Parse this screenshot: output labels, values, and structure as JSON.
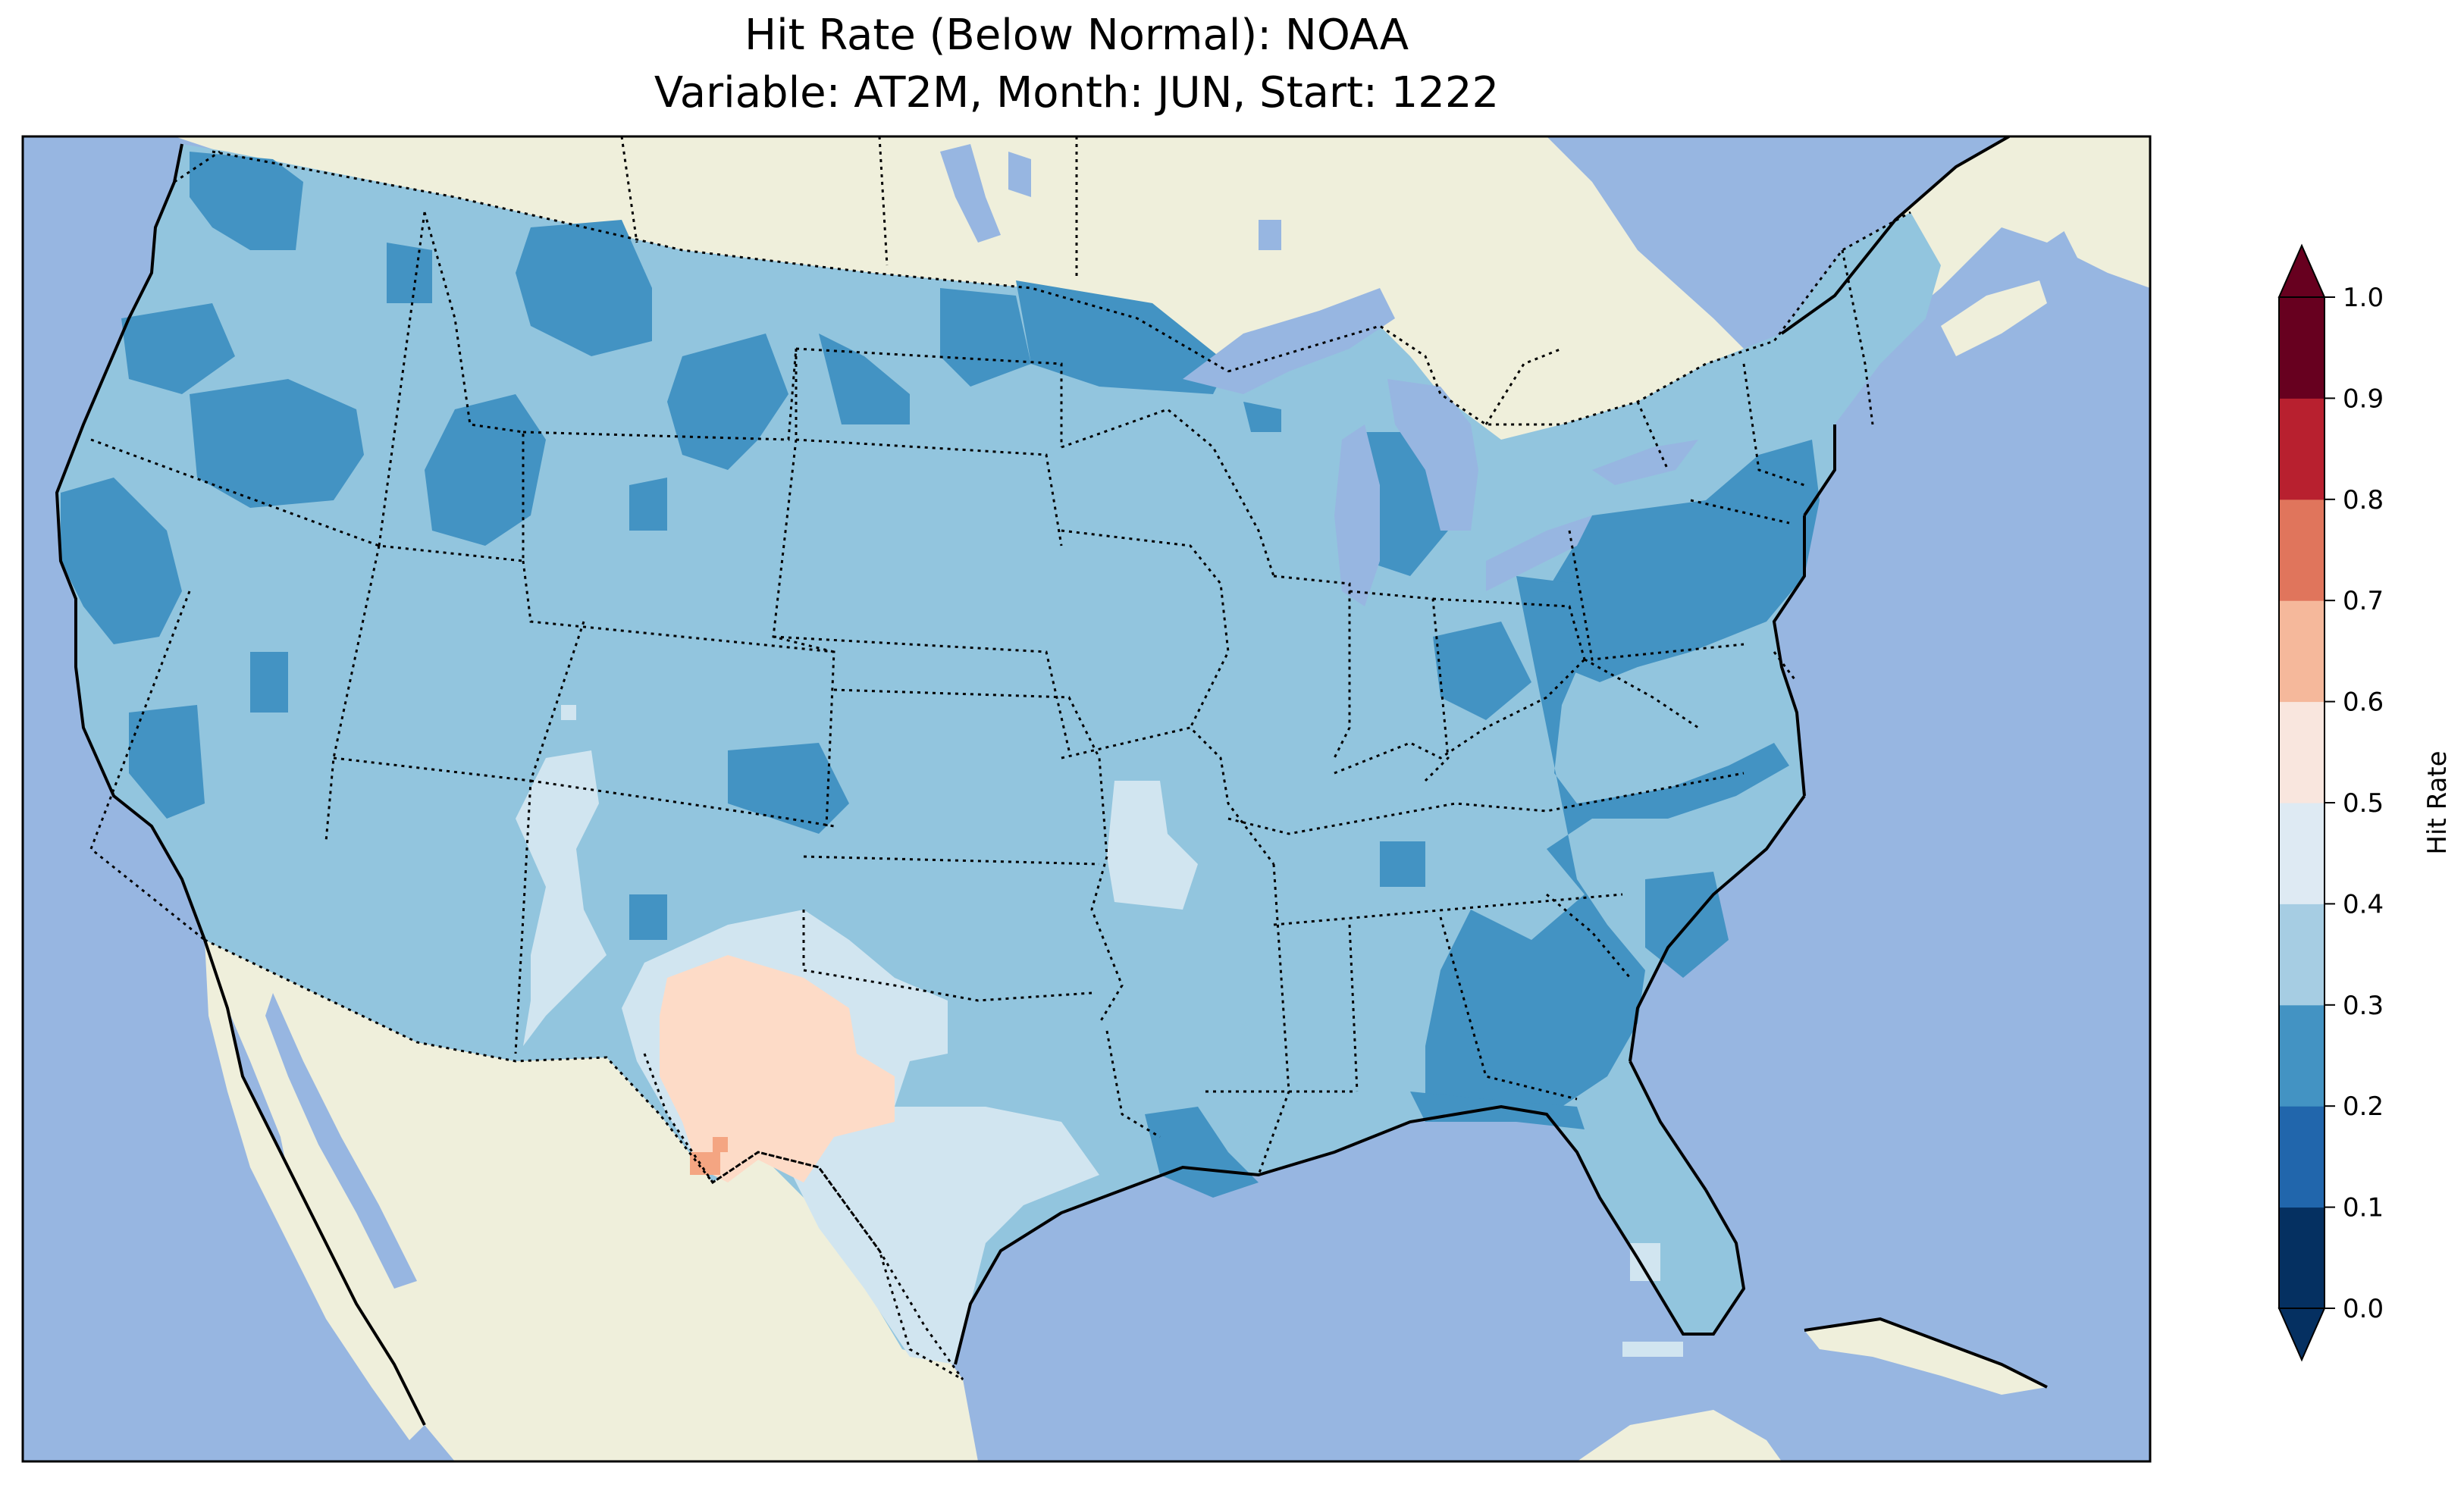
{
  "title": {
    "line1": "Hit Rate (Below Normal): NOAA",
    "line2": "Variable: AT2M, Month: JUN, Start: 1222"
  },
  "map": {
    "region": "Contiguous United States",
    "ocean_color": "#97b6e1",
    "land_color": "#efefdb",
    "grid_visible": false
  },
  "colorbar": {
    "label": "Hit Rate",
    "ticks": [
      "0.0",
      "0.1",
      "0.2",
      "0.3",
      "0.4",
      "0.5",
      "0.6",
      "0.7",
      "0.8",
      "0.9",
      "1.0"
    ],
    "colors": [
      "#053061",
      "#2166ac",
      "#4393c3",
      "#92c5de",
      "#d1e5f0",
      "#f7f7f7",
      "#fddbc7",
      "#f4a582",
      "#d6604d",
      "#b2182b",
      "#67001f"
    ],
    "extend": "both"
  },
  "chart_data": {
    "type": "heatmap",
    "title": "Hit Rate (Below Normal): NOAA",
    "subtitle": "Variable: AT2M, Month: JUN, Start: 1222",
    "colorbar_label": "Hit Rate",
    "range": [
      0.0,
      1.0
    ],
    "bins": [
      0.0,
      0.1,
      0.2,
      0.3,
      0.4,
      0.5,
      0.6,
      0.7,
      0.8,
      0.9,
      1.0
    ],
    "bin_colors": [
      "#053061",
      "#2166ac",
      "#4393c3",
      "#92c5de",
      "#d1e5f0",
      "#f7f7f7",
      "#fddbc7",
      "#f4a582",
      "#d6604d",
      "#b2182b"
    ],
    "dominant_range": [
      0.3,
      0.4
    ],
    "regions": [
      {
        "area": "Most of the contiguous US",
        "value_range": [
          0.3,
          0.4
        ]
      },
      {
        "area": "Pacific Northwest / northern Rockies",
        "value_range": [
          0.2,
          0.3
        ]
      },
      {
        "area": "California coast",
        "value_range": [
          0.2,
          0.3
        ]
      },
      {
        "area": "Northern Plains / Minnesota",
        "value_range": [
          0.2,
          0.3
        ]
      },
      {
        "area": "Mid-Atlantic / Pennsylvania / Virginia",
        "value_range": [
          0.2,
          0.3
        ]
      },
      {
        "area": "Georgia / Alabama / Gulf coast",
        "value_range": [
          0.2,
          0.3
        ]
      },
      {
        "area": "New Mexico / southern Colorado",
        "value_range": [
          0.4,
          0.5
        ]
      },
      {
        "area": "Central / south Texas",
        "value_range": [
          0.4,
          0.5
        ]
      },
      {
        "area": "West Texas",
        "value_range": [
          0.5,
          0.6
        ]
      },
      {
        "area": "Big Bend, Texas",
        "value_range": [
          0.6,
          0.7
        ]
      }
    ]
  }
}
